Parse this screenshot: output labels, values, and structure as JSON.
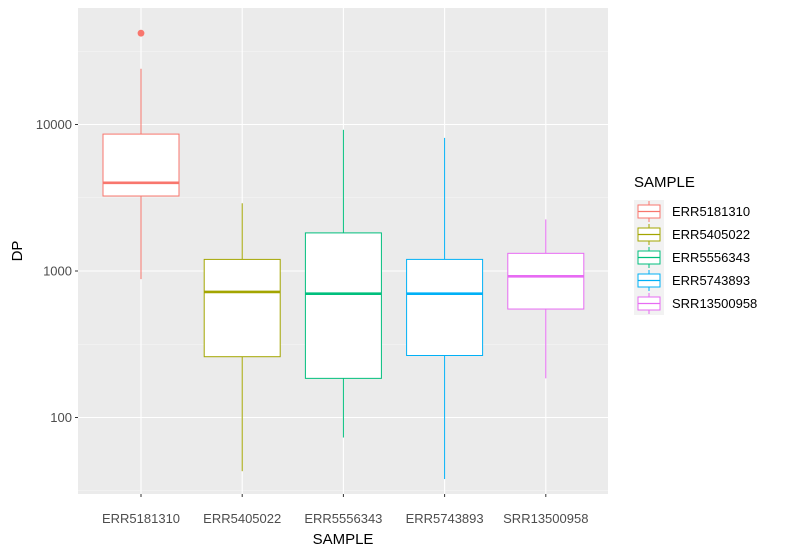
{
  "chart_data": {
    "type": "boxplot",
    "xlabel": "SAMPLE",
    "ylabel": "DP",
    "y_scale": "log10",
    "ylim": [
      30,
      62000
    ],
    "y_ticks": [
      100,
      1000,
      10000
    ],
    "y_tick_labels": [
      "100",
      "1000",
      "10000"
    ],
    "grid": true,
    "legend": {
      "title": "SAMPLE",
      "position": "right"
    },
    "categories": [
      "ERR5181310",
      "ERR5405022",
      "ERR5556343",
      "ERR5743893",
      "SRR13500958"
    ],
    "series": [
      {
        "name": "ERR5181310",
        "color": "#F8766D",
        "whisker_low": 880,
        "q1": 3250,
        "median": 4000,
        "q3": 8600,
        "whisker_high": 24000,
        "outliers": [
          42000
        ]
      },
      {
        "name": "ERR5405022",
        "color": "#A3A500",
        "whisker_low": 43,
        "q1": 260,
        "median": 720,
        "q3": 1200,
        "whisker_high": 2900,
        "outliers": []
      },
      {
        "name": "ERR5556343",
        "color": "#00BF7D",
        "whisker_low": 73,
        "q1": 185,
        "median": 700,
        "q3": 1820,
        "whisker_high": 9200,
        "outliers": []
      },
      {
        "name": "ERR5743893",
        "color": "#00B0F6",
        "whisker_low": 38,
        "q1": 265,
        "median": 700,
        "q3": 1200,
        "whisker_high": 8100,
        "outliers": []
      },
      {
        "name": "SRR13500958",
        "color": "#E76BF3",
        "whisker_low": 185,
        "q1": 550,
        "median": 920,
        "q3": 1320,
        "whisker_high": 2250,
        "outliers": []
      }
    ]
  }
}
